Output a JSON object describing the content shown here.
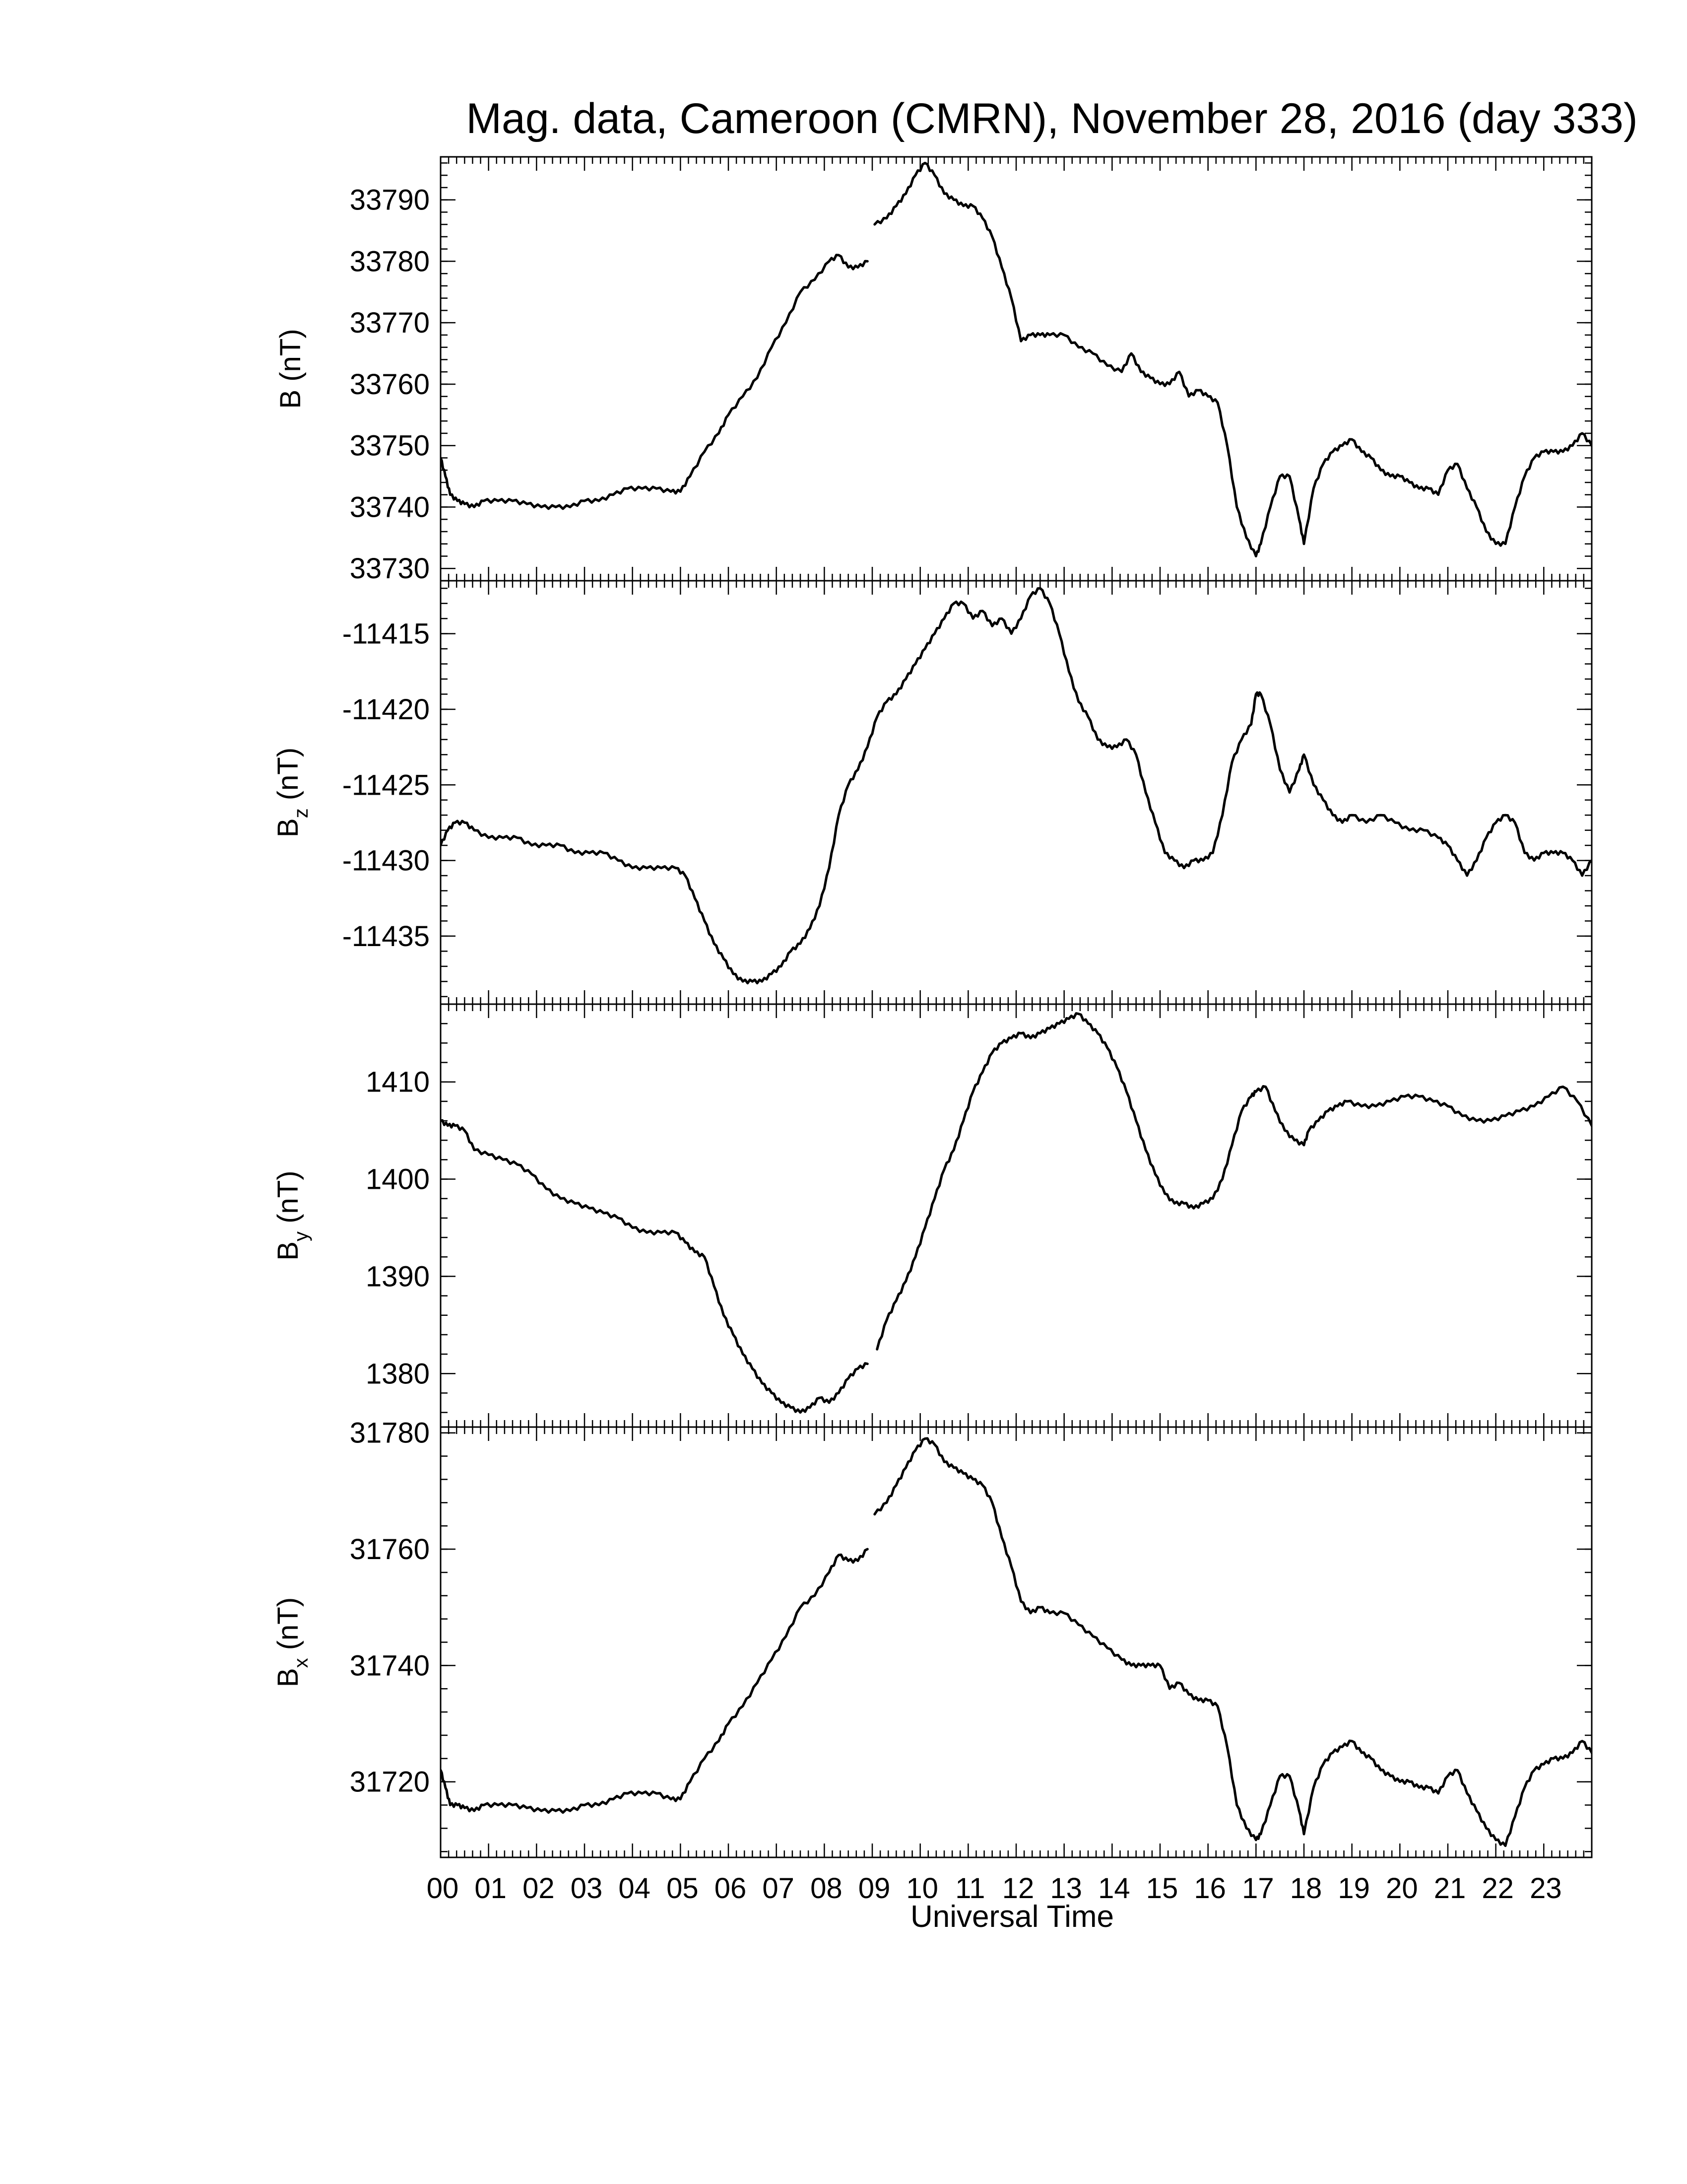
{
  "chart_data": {
    "type": "line",
    "title": "Mag. data, Cameroon (CMRN), November 28, 2016 (day 333)",
    "xlabel": "Universal Time",
    "x_ticks": [
      "00",
      "01",
      "02",
      "03",
      "04",
      "05",
      "06",
      "07",
      "08",
      "09",
      "10",
      "11",
      "12",
      "13",
      "14",
      "15",
      "16",
      "17",
      "18",
      "19",
      "20",
      "21",
      "22",
      "23"
    ],
    "xlim": [
      0,
      24
    ],
    "grid": false,
    "panels": [
      {
        "id": "B",
        "ylabel_main": "B",
        "ylabel_sub": "",
        "ylabel_unit": "(nT)",
        "ylim": [
          33728,
          33797
        ],
        "yticks": [
          33730,
          33740,
          33750,
          33760,
          33770,
          33780,
          33790
        ],
        "gaps": [
          [
            8.95,
            9.02
          ]
        ],
        "series": {
          "x": [
            0,
            0.1,
            0.2,
            0.35,
            0.5,
            0.7,
            0.9,
            1.2,
            1.5,
            1.8,
            2.1,
            2.4,
            2.7,
            3.0,
            3.3,
            3.6,
            3.9,
            4.2,
            4.5,
            4.8,
            5.0,
            5.2,
            5.5,
            5.8,
            6.0,
            6.3,
            6.6,
            6.9,
            7.2,
            7.5,
            7.8,
            8.1,
            8.3,
            8.5,
            8.7,
            8.9,
            9.05,
            9.3,
            9.5,
            9.7,
            9.9,
            10.1,
            10.3,
            10.5,
            10.7,
            10.9,
            11.1,
            11.3,
            11.5,
            11.7,
            11.9,
            12.1,
            12.3,
            12.5,
            12.7,
            13.0,
            13.3,
            13.6,
            13.9,
            14.2,
            14.4,
            14.6,
            14.8,
            15.0,
            15.2,
            15.4,
            15.6,
            15.8,
            16.0,
            16.2,
            16.4,
            16.6,
            16.8,
            17.0,
            17.1,
            17.3,
            17.5,
            17.7,
            17.9,
            18.0,
            18.2,
            18.4,
            18.6,
            18.8,
            19.0,
            19.2,
            19.4,
            19.6,
            19.8,
            20.0,
            20.2,
            20.4,
            20.6,
            20.8,
            21.0,
            21.2,
            21.4,
            21.6,
            21.8,
            22.0,
            22.2,
            22.4,
            22.6,
            22.8,
            23.0,
            23.2,
            23.4,
            23.6,
            23.8,
            24.0
          ],
          "y": [
            33748,
            33745,
            33742,
            33741,
            33740.5,
            33740,
            33741,
            33741,
            33741,
            33740.5,
            33740,
            33740,
            33740,
            33741,
            33741,
            33742,
            33743,
            33743,
            33743,
            33742.5,
            33742.5,
            33745,
            33749,
            33752,
            33755,
            33758,
            33761,
            33766,
            33770,
            33775,
            33777,
            33780,
            33781,
            33779,
            33779,
            33780,
            33786,
            33787,
            33789,
            33791,
            33794,
            33796,
            33794,
            33791,
            33790,
            33789,
            33789,
            33787,
            33784,
            33779,
            33774,
            33767,
            33768,
            33768,
            33768,
            33768,
            33766,
            33765,
            33763,
            33762,
            33765,
            33762,
            33761,
            33760,
            33760,
            33762,
            33758,
            33759,
            33758,
            33757,
            33750,
            33740,
            33735,
            33732,
            33734,
            33740,
            33745,
            33745,
            33738,
            33734,
            33743,
            33747,
            33749,
            33750,
            33751,
            33749,
            33748,
            33746,
            33745,
            33745,
            33744,
            33743,
            33743,
            33742,
            33746,
            33747,
            33743,
            33740,
            33736,
            33734,
            33734,
            33740,
            33745,
            33748,
            33749,
            33749,
            33749,
            33750,
            33752,
            33750
          ]
        }
      },
      {
        "id": "Bz",
        "ylabel_main": "B",
        "ylabel_sub": "z",
        "ylabel_unit": "(nT)",
        "ylim": [
          -11439.5,
          -11411.5
        ],
        "yticks": [
          -11415,
          -11420,
          -11425,
          -11430,
          -11435
        ],
        "gaps": [],
        "series": {
          "x": [
            0,
            0.15,
            0.3,
            0.5,
            0.7,
            1.0,
            1.3,
            1.6,
            1.9,
            2.2,
            2.5,
            2.8,
            3.1,
            3.4,
            3.7,
            4.0,
            4.3,
            4.6,
            4.9,
            5.1,
            5.3,
            5.5,
            5.7,
            5.9,
            6.1,
            6.3,
            6.5,
            6.7,
            6.9,
            7.1,
            7.3,
            7.5,
            7.7,
            7.9,
            8.1,
            8.3,
            8.5,
            8.7,
            8.9,
            9.1,
            9.3,
            9.5,
            9.7,
            9.9,
            10.1,
            10.3,
            10.5,
            10.7,
            10.9,
            11.1,
            11.3,
            11.5,
            11.7,
            11.9,
            12.1,
            12.3,
            12.5,
            12.7,
            12.9,
            13.1,
            13.3,
            13.5,
            13.7,
            13.9,
            14.1,
            14.3,
            14.5,
            14.7,
            14.9,
            15.1,
            15.3,
            15.5,
            15.7,
            15.9,
            16.1,
            16.3,
            16.5,
            16.7,
            16.9,
            17.0,
            17.1,
            17.3,
            17.5,
            17.7,
            17.9,
            18.0,
            18.2,
            18.4,
            18.6,
            18.8,
            19.0,
            19.3,
            19.6,
            19.9,
            20.2,
            20.5,
            20.8,
            21.0,
            21.2,
            21.4,
            21.6,
            21.8,
            22.0,
            22.2,
            22.4,
            22.6,
            22.8,
            23.0,
            23.2,
            23.4,
            23.6,
            23.8,
            24.0
          ],
          "y": [
            -11429,
            -11428,
            -11427.5,
            -11427.5,
            -11428,
            -11428.5,
            -11428.5,
            -11428.5,
            -11429,
            -11429,
            -11429,
            -11429.5,
            -11429.5,
            -11429.5,
            -11430,
            -11430.5,
            -11430.5,
            -11430.5,
            -11430.5,
            -11431,
            -11432.5,
            -11434,
            -11435.5,
            -11436.5,
            -11437.5,
            -11438,
            -11438,
            -11438,
            -11437.5,
            -11437,
            -11436,
            -11435.5,
            -11434.5,
            -11433,
            -11430.5,
            -11427,
            -11425,
            -11424,
            -11422.5,
            -11420.5,
            -11419.5,
            -11419,
            -11418,
            -11417,
            -11416,
            -11415,
            -11414,
            -11413,
            -11413,
            -11414,
            -11413.5,
            -11414.5,
            -11414,
            -11415,
            -11414,
            -11412.5,
            -11412,
            -11413,
            -11415,
            -11417.5,
            -11419.5,
            -11420.5,
            -11422,
            -11422.5,
            -11422.5,
            -11422,
            -11423,
            -11425.5,
            -11427.5,
            -11429.5,
            -11430,
            -11430.5,
            -11430,
            -11430,
            -11429.5,
            -11427,
            -11423.5,
            -11422,
            -11421,
            -11419,
            -11419,
            -11421,
            -11424,
            -11425.5,
            -11424,
            -11423,
            -11425,
            -11426,
            -11427,
            -11427.5,
            -11427,
            -11427.5,
            -11427,
            -11427.5,
            -11428,
            -11428,
            -11428.5,
            -11429,
            -11430,
            -11431,
            -11430,
            -11428.5,
            -11427.5,
            -11427,
            -11427.5,
            -11429.5,
            -11430,
            -11429.5,
            -11429.5,
            -11429.5,
            -11430,
            -11431,
            -11430
          ]
        }
      },
      {
        "id": "By",
        "ylabel_main": "B",
        "ylabel_sub": "y",
        "ylabel_unit": "(nT)",
        "ylim": [
          1374.5,
          1418
        ],
        "yticks": [
          1410,
          1400,
          1390,
          1380
        ],
        "gaps": [
          [
            8.95,
            9.05
          ]
        ],
        "series": {
          "x": [
            0,
            0.15,
            0.3,
            0.5,
            0.7,
            1.0,
            1.3,
            1.6,
            1.9,
            2.2,
            2.5,
            2.8,
            3.1,
            3.4,
            3.7,
            4.0,
            4.3,
            4.6,
            4.9,
            5.1,
            5.3,
            5.5,
            5.7,
            5.9,
            6.1,
            6.3,
            6.5,
            6.7,
            6.9,
            7.1,
            7.3,
            7.5,
            7.7,
            7.9,
            8.1,
            8.3,
            8.5,
            8.7,
            8.9,
            9.1,
            9.3,
            9.5,
            9.7,
            9.9,
            10.1,
            10.3,
            10.5,
            10.7,
            10.9,
            11.1,
            11.3,
            11.5,
            11.7,
            11.9,
            12.1,
            12.3,
            12.5,
            12.7,
            12.9,
            13.1,
            13.3,
            13.5,
            13.7,
            13.9,
            14.1,
            14.3,
            14.5,
            14.7,
            14.9,
            15.1,
            15.3,
            15.5,
            15.7,
            15.9,
            16.1,
            16.3,
            16.5,
            16.7,
            16.9,
            17.0,
            17.2,
            17.4,
            17.6,
            17.8,
            18.0,
            18.1,
            18.3,
            18.5,
            18.7,
            18.9,
            19.2,
            19.5,
            19.8,
            20.1,
            20.4,
            20.7,
            21.0,
            21.3,
            21.6,
            21.9,
            22.2,
            22.5,
            22.8,
            23.1,
            23.4,
            23.7,
            24.0
          ],
          "y": [
            1406,
            1405.5,
            1405.5,
            1405,
            1403,
            1402.5,
            1402,
            1401.5,
            1400.5,
            1399,
            1398,
            1397.5,
            1397,
            1396.5,
            1396,
            1395,
            1394.5,
            1394.5,
            1394.5,
            1393.5,
            1392.5,
            1392,
            1389,
            1386,
            1384,
            1382,
            1380.5,
            1379,
            1378,
            1377,
            1376.5,
            1376,
            1376.5,
            1377.5,
            1377,
            1378,
            1379.5,
            1380.5,
            1381,
            1382.5,
            1385.5,
            1387.5,
            1389.5,
            1392,
            1395,
            1398,
            1401,
            1403,
            1406,
            1409,
            1411,
            1413,
            1414,
            1414.5,
            1415,
            1414.5,
            1415,
            1415.5,
            1416,
            1416.5,
            1417,
            1416,
            1415,
            1413.5,
            1411.5,
            1409,
            1406,
            1403,
            1400.5,
            1398.5,
            1397.5,
            1397.5,
            1397,
            1397.5,
            1398,
            1400,
            1403.5,
            1407,
            1408.5,
            1409,
            1409.5,
            1407,
            1405,
            1404,
            1403.5,
            1405,
            1406,
            1407,
            1407.5,
            1408,
            1407.5,
            1407.5,
            1408,
            1408.5,
            1408.5,
            1408,
            1407.5,
            1406.5,
            1406,
            1406,
            1406.5,
            1407,
            1407.5,
            1408.5,
            1409.5,
            1408,
            1405.5
          ]
        }
      },
      {
        "id": "Bx",
        "ylabel_main": "B",
        "ylabel_sub": "x",
        "ylabel_unit": "(nT)",
        "ylim": [
          31707,
          31781
        ],
        "yticks": [
          31780,
          31760,
          31740,
          31720
        ],
        "gaps": [
          [
            8.95,
            9.02
          ]
        ],
        "series": {
          "x": [
            0,
            0.1,
            0.2,
            0.35,
            0.5,
            0.7,
            0.9,
            1.2,
            1.5,
            1.8,
            2.1,
            2.4,
            2.7,
            3.0,
            3.3,
            3.6,
            3.9,
            4.2,
            4.5,
            4.8,
            5.0,
            5.2,
            5.5,
            5.8,
            6.0,
            6.3,
            6.6,
            6.9,
            7.2,
            7.5,
            7.8,
            8.1,
            8.3,
            8.5,
            8.7,
            8.9,
            9.05,
            9.3,
            9.5,
            9.7,
            9.9,
            10.1,
            10.3,
            10.5,
            10.7,
            10.9,
            11.1,
            11.3,
            11.5,
            11.7,
            11.9,
            12.1,
            12.3,
            12.5,
            12.7,
            13.0,
            13.3,
            13.6,
            13.9,
            14.2,
            14.4,
            14.6,
            14.8,
            15.0,
            15.2,
            15.4,
            15.6,
            15.8,
            16.0,
            16.2,
            16.4,
            16.6,
            16.8,
            17.0,
            17.1,
            17.3,
            17.5,
            17.7,
            17.9,
            18.0,
            18.2,
            18.4,
            18.6,
            18.8,
            19.0,
            19.2,
            19.4,
            19.6,
            19.8,
            20.0,
            20.2,
            20.4,
            20.6,
            20.8,
            21.0,
            21.2,
            21.4,
            21.6,
            21.8,
            22.0,
            22.2,
            22.4,
            22.6,
            22.8,
            23.0,
            23.2,
            23.4,
            23.6,
            23.8,
            24.0
          ],
          "y": [
            31722,
            31719,
            31716,
            31716,
            31715.5,
            31715,
            31716,
            31716,
            31716,
            31715.5,
            31715,
            31715,
            31715,
            31716,
            31716,
            31717,
            31718,
            31718,
            31718,
            31717,
            31717,
            31720,
            31724,
            31727,
            31730,
            31733,
            31737,
            31741,
            31745,
            31750,
            31752,
            31756,
            31759,
            31758,
            31758,
            31760,
            31766,
            31768,
            31771,
            31774,
            31777,
            31779,
            31778,
            31775,
            31774,
            31773,
            31772,
            31771,
            31768,
            31762,
            31757,
            31751,
            31749,
            31750,
            31749,
            31749,
            31747,
            31745,
            31743,
            31741,
            31740,
            31740,
            31740,
            31740,
            31736,
            31737,
            31735,
            31734,
            31734,
            31733,
            31726,
            31716,
            31712,
            31710,
            31711,
            31716,
            31721,
            31721,
            31715,
            31711,
            31719,
            31723,
            31725,
            31726,
            31727,
            31725,
            31724,
            31722,
            31721,
            31720,
            31720,
            31719,
            31719,
            31718,
            31721,
            31722,
            31718,
            31715,
            31712,
            31710,
            31709,
            31714,
            31719,
            31722,
            31723,
            31724,
            31724,
            31725,
            31727,
            31725
          ]
        }
      }
    ]
  }
}
